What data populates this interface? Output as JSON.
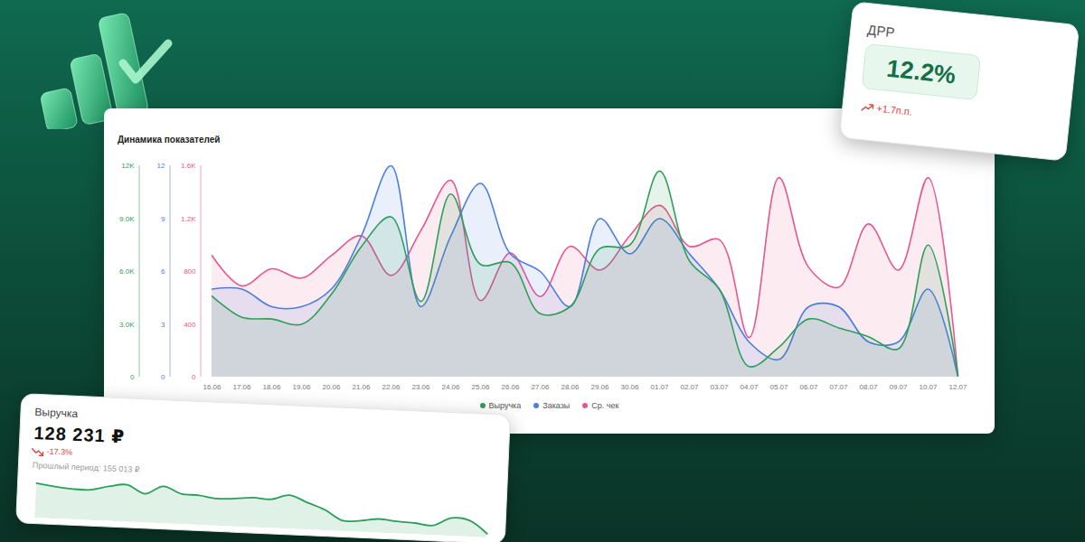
{
  "chart_data": {
    "type": "area",
    "title": "Динамика показателей",
    "categories": [
      "16.06",
      "17.06",
      "18.06",
      "19.06",
      "20.06",
      "21.06",
      "22.06",
      "23.06",
      "24.06",
      "25.06",
      "26.06",
      "27.06",
      "28.06",
      "29.06",
      "30.06",
      "01.07",
      "02.07",
      "03.07",
      "04.07",
      "05.07",
      "06.07",
      "07.07",
      "08.07",
      "09.07",
      "10.07",
      "12.07"
    ],
    "series": [
      {
        "name": "Выручка",
        "color": "#2e9e5b",
        "values": [
          4600,
          3400,
          3300,
          3000,
          4700,
          7400,
          9100,
          4300,
          10400,
          6400,
          6500,
          3600,
          4000,
          7300,
          7500,
          11700,
          6600,
          5000,
          600,
          1700,
          3300,
          2800,
          2300,
          1600,
          7500,
          100
        ]
      },
      {
        "name": "Заказы",
        "color": "#4a7fdb",
        "axis": "y2",
        "values": [
          5,
          5,
          4,
          4,
          5,
          8,
          12,
          4,
          8,
          11,
          7,
          6,
          4,
          9,
          7,
          9,
          7,
          5,
          2,
          1,
          4,
          4,
          2,
          2,
          5,
          0
        ]
      },
      {
        "name": "Ср. чек",
        "color": "#e5578f",
        "axis": "y3",
        "values": [
          920,
          690,
          820,
          750,
          920,
          1070,
          770,
          1110,
          1490,
          580,
          940,
          610,
          990,
          810,
          1070,
          1300,
          990,
          1040,
          300,
          1510,
          830,
          680,
          1160,
          810,
          1510,
          10
        ]
      }
    ],
    "ylim": [
      0,
      12000
    ],
    "yticks": [
      0,
      {
        "value": 3000,
        "label": "3.0K"
      },
      {
        "value": 6000,
        "label": "6.0K"
      },
      {
        "value": 9000,
        "label": "9.0K"
      },
      {
        "value": 12000,
        "label": "12K"
      }
    ],
    "y2lim": [
      0,
      12
    ],
    "y2ticks": [
      0,
      3,
      6,
      9,
      12
    ],
    "y3lim": [
      0,
      1600
    ],
    "y3ticks": [
      0,
      400,
      800,
      {
        "value": 1200,
        "label": "1.2K"
      },
      {
        "value": 1600,
        "label": "1.6K"
      }
    ],
    "legend": "bottom",
    "grid": false
  },
  "cards": [
    {
      "title": "ДРР",
      "value": "12.2%",
      "change": "+1.7п.п."
    },
    {
      "title": "Выручка",
      "value": "128 231 ₽",
      "change": "-17.3%",
      "note": "Прошлый период: 155 013 ₽",
      "sparkline": {
        "type": "area",
        "color": "#2e9e5b",
        "ylim": [
          0,
          50
        ],
        "tick_labels": false,
        "values": [
          42,
          39,
          37,
          37,
          42,
          45,
          35,
          45,
          37,
          36,
          33,
          34,
          36,
          35,
          41,
          33,
          25,
          13,
          14,
          17,
          15,
          14,
          12,
          22,
          20,
          5
        ]
      }
    }
  ]
}
